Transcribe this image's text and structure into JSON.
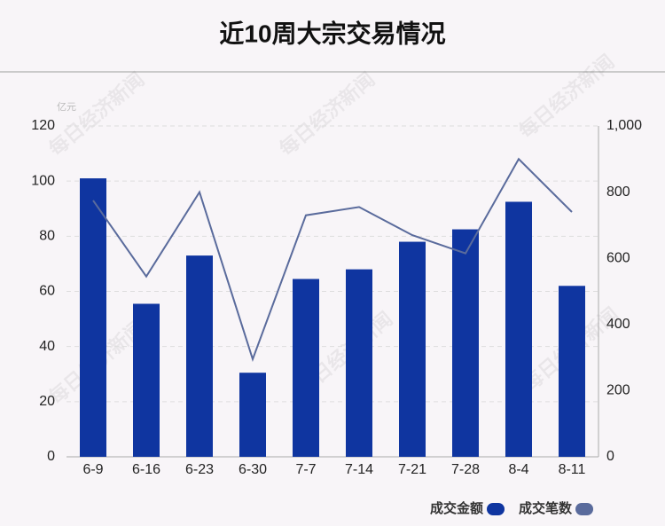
{
  "chart_data": {
    "type": "bar",
    "title": "近10周大宗交易情况",
    "y_unit": "亿元",
    "watermark": "每日经济新闻",
    "categories": [
      "6-9",
      "6-16",
      "6-23",
      "6-30",
      "7-7",
      "7-14",
      "7-21",
      "7-28",
      "8-4",
      "8-11"
    ],
    "series": [
      {
        "name": "成交金额",
        "type": "bar",
        "color": "#0f35a0",
        "values": [
          101,
          55.5,
          73,
          30.5,
          64.5,
          68,
          78,
          82.5,
          92.5,
          62
        ]
      },
      {
        "name": "成交笔数",
        "type": "line",
        "axis": "y2",
        "color": "#5a6b9c",
        "values": [
          775,
          545,
          800,
          295,
          730,
          755,
          670,
          615,
          900,
          740
        ]
      }
    ],
    "ylim": [
      0,
      120
    ],
    "yticks": [
      0,
      20,
      40,
      60,
      80,
      100,
      120
    ],
    "y2lim": [
      0,
      1000
    ],
    "y2ticks": [
      0,
      200,
      400,
      600,
      800,
      {
        "value": 1000,
        "label": "1,000"
      }
    ],
    "grid": true
  }
}
